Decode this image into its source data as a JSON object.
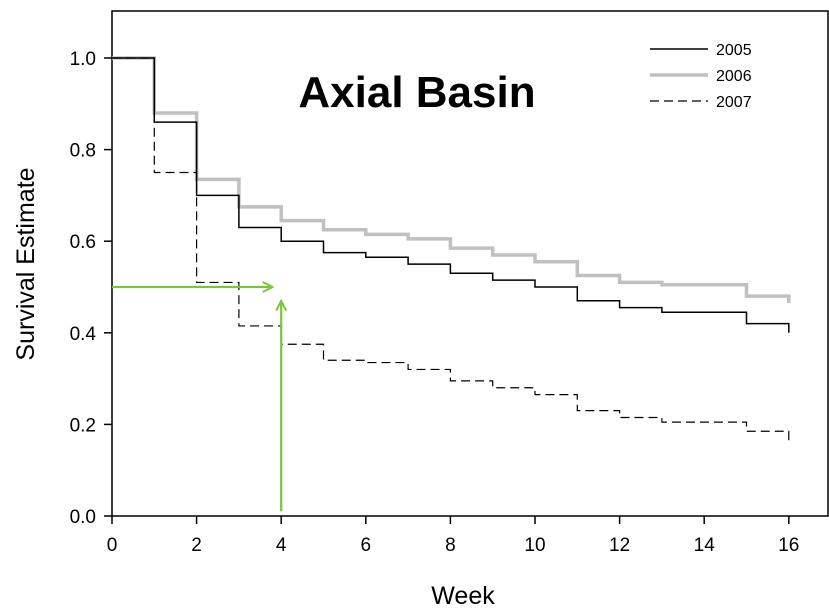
{
  "chart_data": {
    "type": "line",
    "subtype": "step",
    "title": "Axial Basin",
    "xlabel": "Week",
    "ylabel": "Survival Estimate",
    "xlim": [
      0,
      16.6
    ],
    "ylim": [
      0,
      1.1
    ],
    "x_ticks": [
      0,
      2,
      4,
      6,
      8,
      10,
      12,
      14,
      16
    ],
    "x_tick_labels": [
      "0",
      "2",
      "4",
      "6",
      "8",
      "10",
      "12",
      "14",
      "16"
    ],
    "y_ticks": [
      0.0,
      0.2,
      0.4,
      0.6,
      0.8,
      1.0
    ],
    "y_tick_labels": [
      "0.0",
      "0.2",
      "0.4",
      "0.6",
      "0.8",
      "1.0"
    ],
    "grid": false,
    "legend_position": "top-right",
    "series": [
      {
        "name": "2005",
        "color": "#000000",
        "style": "solid",
        "x": [
          0,
          1,
          2,
          3,
          4,
          5,
          6,
          7,
          8,
          9,
          10,
          11,
          12,
          13,
          14,
          15,
          16
        ],
        "y": [
          1.0,
          0.86,
          0.7,
          0.63,
          0.6,
          0.575,
          0.565,
          0.55,
          0.53,
          0.515,
          0.5,
          0.47,
          0.455,
          0.445,
          0.445,
          0.42,
          0.4
        ]
      },
      {
        "name": "2006",
        "color": "#c0c0c0",
        "style": "solid-thick",
        "x": [
          0,
          1,
          2,
          3,
          4,
          5,
          6,
          7,
          8,
          9,
          10,
          11,
          12,
          13,
          14,
          15,
          16
        ],
        "y": [
          1.0,
          0.88,
          0.735,
          0.675,
          0.645,
          0.625,
          0.615,
          0.605,
          0.585,
          0.57,
          0.555,
          0.525,
          0.51,
          0.505,
          0.505,
          0.48,
          0.465
        ]
      },
      {
        "name": "2007",
        "color": "#000000",
        "style": "dashed",
        "x": [
          0,
          1,
          2,
          3,
          4,
          5,
          6,
          7,
          8,
          9,
          10,
          11,
          12,
          13,
          14,
          15,
          16
        ],
        "y": [
          1.0,
          0.75,
          0.51,
          0.415,
          0.375,
          0.34,
          0.335,
          0.32,
          0.295,
          0.28,
          0.265,
          0.23,
          0.215,
          0.205,
          0.205,
          0.185,
          0.165
        ]
      }
    ],
    "annotations": [
      {
        "type": "arrow",
        "color": "#7dc242",
        "from": [
          0,
          0.5
        ],
        "to": [
          3.8,
          0.5
        ]
      },
      {
        "type": "arrow",
        "color": "#7dc242",
        "from": [
          4.0,
          0.01
        ],
        "to": [
          4.0,
          0.47
        ]
      }
    ]
  }
}
